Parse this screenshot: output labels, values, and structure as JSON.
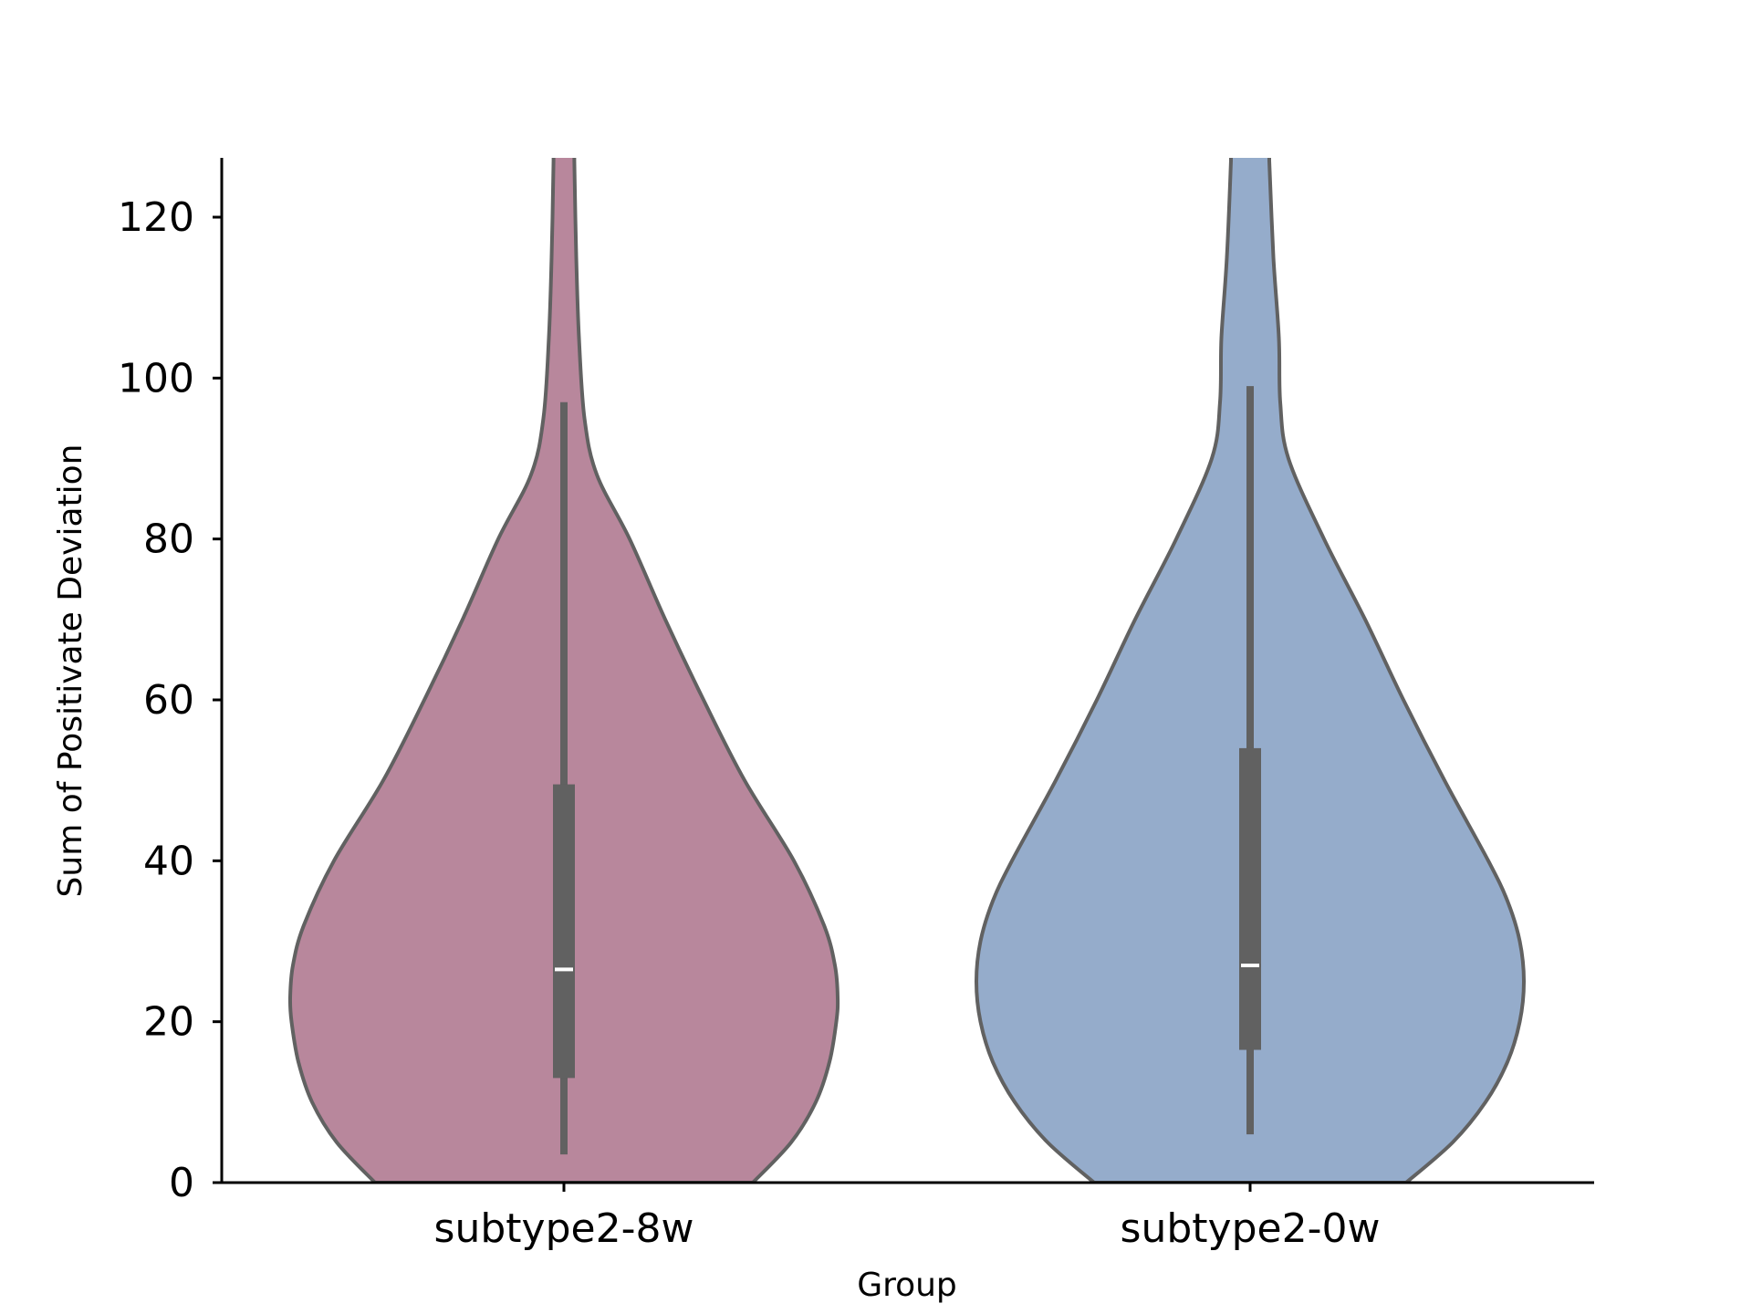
{
  "chart_data": {
    "type": "violin",
    "title": "",
    "xlabel": "Group",
    "ylabel": "Sum of Positivate Deviation",
    "ylim": [
      0,
      127
    ],
    "yticks": [
      0,
      20,
      40,
      60,
      80,
      100,
      120
    ],
    "grid": false,
    "legend": "none",
    "categories": [
      "subtype2-8w",
      "subtype2-0w"
    ],
    "series": [
      {
        "color": "#b8879c",
        "median": 26.5,
        "q1": 13,
        "q3": 49.5,
        "whisker_low": 3.5,
        "whisker_high": 97,
        "density": [
          [
            0,
            0.69
          ],
          [
            5,
            0.83
          ],
          [
            10,
            0.92
          ],
          [
            15,
            0.97
          ],
          [
            20,
            0.995
          ],
          [
            23,
            1.0
          ],
          [
            27,
            0.99
          ],
          [
            32,
            0.95
          ],
          [
            40,
            0.84
          ],
          [
            50,
            0.66
          ],
          [
            60,
            0.51
          ],
          [
            70,
            0.37
          ],
          [
            80,
            0.24
          ],
          [
            88,
            0.12
          ],
          [
            95,
            0.075
          ],
          [
            105,
            0.055
          ],
          [
            115,
            0.045
          ],
          [
            127,
            0.038
          ]
        ]
      },
      {
        "color": "#95accb",
        "median": 27,
        "q1": 16.5,
        "q3": 54,
        "whisker_low": 6,
        "whisker_high": 99,
        "density": [
          [
            0,
            0.57
          ],
          [
            5,
            0.74
          ],
          [
            10,
            0.86
          ],
          [
            15,
            0.94
          ],
          [
            20,
            0.985
          ],
          [
            25,
            1.0
          ],
          [
            30,
            0.985
          ],
          [
            35,
            0.94
          ],
          [
            40,
            0.87
          ],
          [
            50,
            0.71
          ],
          [
            60,
            0.56
          ],
          [
            70,
            0.42
          ],
          [
            80,
            0.27
          ],
          [
            90,
            0.14
          ],
          [
            97,
            0.11
          ],
          [
            105,
            0.105
          ],
          [
            115,
            0.085
          ],
          [
            127,
            0.07
          ]
        ]
      }
    ]
  }
}
